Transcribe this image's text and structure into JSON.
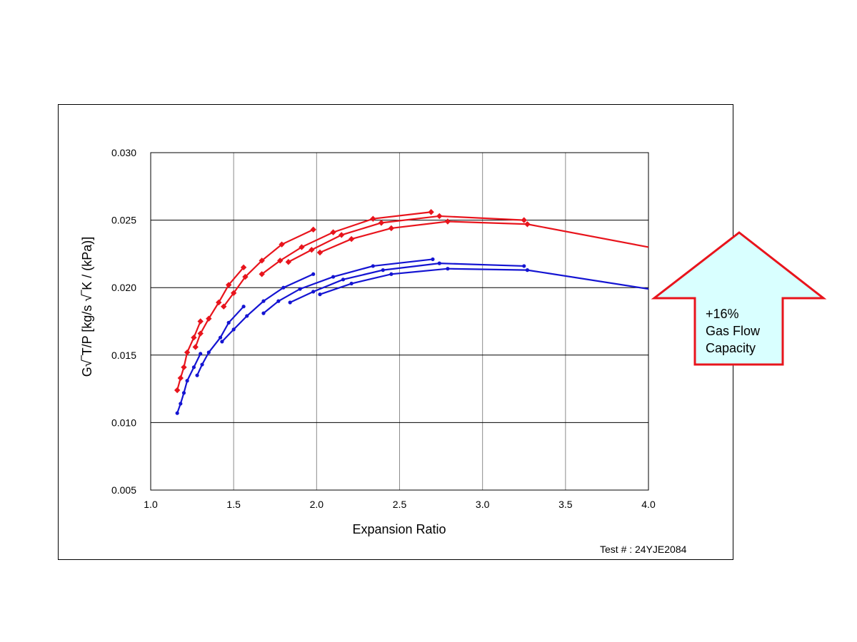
{
  "chart_data": {
    "type": "line",
    "xlabel": "Expansion Ratio",
    "ylabel": "G√‾T/P [kg/s √‾K / (kPa)]",
    "xlim": [
      1.0,
      4.0
    ],
    "ylim": [
      0.005,
      0.03
    ],
    "xticks": [
      "1.0",
      "1.5",
      "2.0",
      "2.5",
      "3.0",
      "3.5",
      "4.0"
    ],
    "yticks": [
      "0.005",
      "0.010",
      "0.015",
      "0.020",
      "0.025",
      "0.030"
    ],
    "grid": true,
    "series": [
      {
        "color": "#e8141c",
        "marker": "diamond",
        "x": [
          1.16,
          1.18,
          1.2,
          1.22,
          1.26,
          1.3
        ],
        "y": [
          0.0124,
          0.0133,
          0.0141,
          0.0152,
          0.0163,
          0.0175
        ]
      },
      {
        "color": "#e8141c",
        "marker": "diamond",
        "x": [
          1.27,
          1.3,
          1.35,
          1.41,
          1.47,
          1.56
        ],
        "y": [
          0.0156,
          0.0166,
          0.0177,
          0.0189,
          0.0202,
          0.0215
        ]
      },
      {
        "color": "#e8141c",
        "marker": "diamond",
        "x": [
          1.44,
          1.5,
          1.57,
          1.67,
          1.79,
          1.98
        ],
        "y": [
          0.0186,
          0.0196,
          0.0208,
          0.022,
          0.0232,
          0.0243
        ]
      },
      {
        "color": "#e8141c",
        "marker": "diamond",
        "x": [
          1.67,
          1.78,
          1.91,
          2.1,
          2.34,
          2.69
        ],
        "y": [
          0.021,
          0.022,
          0.023,
          0.0241,
          0.0251,
          0.0256
        ]
      },
      {
        "color": "#e8141c",
        "marker": "diamond",
        "x": [
          1.83,
          1.97,
          2.15,
          2.39,
          2.74,
          3.25
        ],
        "y": [
          0.0219,
          0.0228,
          0.0239,
          0.0248,
          0.0253,
          0.025
        ]
      },
      {
        "color": "#e8141c",
        "marker": "diamond",
        "x": [
          2.02,
          2.21,
          2.45,
          2.79,
          3.27,
          4.0
        ],
        "y": [
          0.0226,
          0.0236,
          0.0244,
          0.0249,
          0.0247,
          0.023
        ]
      },
      {
        "color": "#1414d2",
        "marker": "circle",
        "x": [
          1.16,
          1.18,
          1.2,
          1.22,
          1.26,
          1.3
        ],
        "y": [
          0.0107,
          0.0114,
          0.0122,
          0.0131,
          0.0141,
          0.0151
        ]
      },
      {
        "color": "#1414d2",
        "marker": "circle",
        "x": [
          1.28,
          1.31,
          1.35,
          1.42,
          1.47,
          1.56
        ],
        "y": [
          0.0135,
          0.0143,
          0.0152,
          0.0163,
          0.0174,
          0.0186
        ]
      },
      {
        "color": "#1414d2",
        "marker": "circle",
        "x": [
          1.43,
          1.5,
          1.58,
          1.68,
          1.8,
          1.98
        ],
        "y": [
          0.016,
          0.0169,
          0.0179,
          0.019,
          0.02,
          0.021
        ]
      },
      {
        "color": "#1414d2",
        "marker": "circle",
        "x": [
          1.68,
          1.77,
          1.9,
          2.1,
          2.34,
          2.7
        ],
        "y": [
          0.0181,
          0.019,
          0.0199,
          0.0208,
          0.0216,
          0.0221
        ]
      },
      {
        "color": "#1414d2",
        "marker": "circle",
        "x": [
          1.84,
          1.98,
          2.16,
          2.4,
          2.74,
          3.25
        ],
        "y": [
          0.0189,
          0.0197,
          0.0206,
          0.0213,
          0.0218,
          0.0216
        ]
      },
      {
        "color": "#1414d2",
        "marker": "circle",
        "x": [
          2.02,
          2.21,
          2.45,
          2.79,
          3.27,
          4.0
        ],
        "y": [
          0.0195,
          0.0203,
          0.021,
          0.0214,
          0.0213,
          0.0199
        ]
      }
    ]
  },
  "note": "Test # : 24YJE2084",
  "callout": {
    "lines": [
      "+16%",
      "Gas Flow",
      "Capacity"
    ],
    "fill": "#d9ffff",
    "stroke": "#e8141c"
  }
}
